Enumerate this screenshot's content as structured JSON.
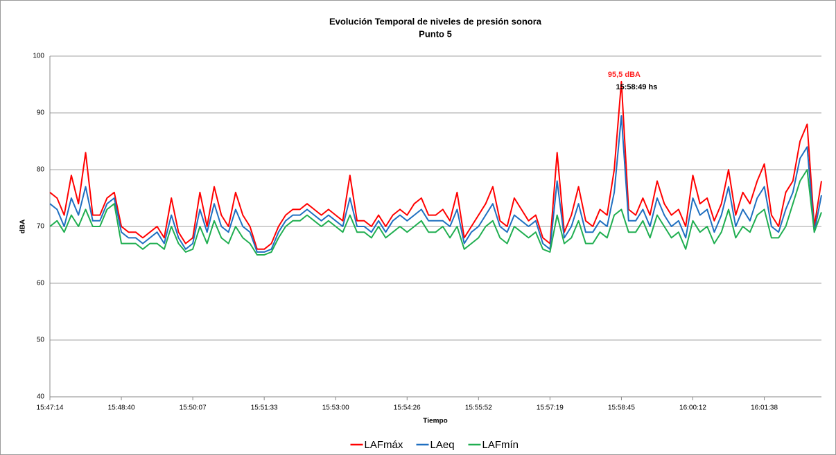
{
  "chart_data": {
    "type": "line",
    "title": "Evolución Temporal de niveles de presión sonora",
    "subtitle": "Punto 5",
    "y_label": "dBA",
    "x_label": "Tiempo",
    "categories": [
      "15:47:14",
      null,
      null,
      null,
      null,
      null,
      null,
      null,
      null,
      null,
      "15:48:40",
      null,
      null,
      null,
      null,
      null,
      null,
      null,
      null,
      null,
      "15:50:07",
      null,
      null,
      null,
      null,
      null,
      null,
      null,
      null,
      null,
      "15:51:33",
      null,
      null,
      null,
      null,
      null,
      null,
      null,
      null,
      null,
      "15:53:00",
      null,
      null,
      null,
      null,
      null,
      null,
      null,
      null,
      null,
      "15:54:26",
      null,
      null,
      null,
      null,
      null,
      null,
      null,
      null,
      null,
      "15:55:52",
      null,
      null,
      null,
      null,
      null,
      null,
      null,
      null,
      null,
      "15:57:19",
      null,
      null,
      null,
      null,
      null,
      null,
      null,
      null,
      null,
      "15:58:45",
      null,
      null,
      null,
      null,
      null,
      null,
      null,
      null,
      null,
      "16:00:12",
      null,
      null,
      null,
      null,
      null,
      null,
      null,
      null,
      null,
      "16:01:38",
      null,
      null,
      null,
      null,
      null,
      null,
      null,
      null
    ],
    "series": [
      {
        "name": "LAFmáx",
        "color": "#ff0000",
        "values": [
          76,
          75,
          72,
          79,
          74,
          83,
          72,
          72,
          75,
          76,
          70,
          69,
          69,
          68,
          69,
          70,
          68,
          75,
          69,
          67,
          68,
          76,
          70,
          77,
          72,
          70,
          76,
          72,
          70,
          66,
          66,
          67,
          70,
          72,
          73,
          73,
          74,
          73,
          72,
          73,
          72,
          71,
          79,
          71,
          71,
          70,
          72,
          70,
          72,
          73,
          72,
          74,
          75,
          72,
          72,
          73,
          71,
          76,
          68,
          70,
          72,
          74,
          77,
          71,
          70,
          75,
          73,
          71,
          72,
          68,
          67,
          83,
          69,
          72,
          77,
          71,
          70,
          73,
          72,
          80,
          95.5,
          73,
          72,
          75,
          72,
          78,
          74,
          72,
          73,
          70,
          79,
          74,
          75,
          71,
          74,
          80,
          72,
          76,
          74,
          78,
          81,
          72,
          70,
          76,
          78,
          85,
          88,
          70,
          78
        ]
      },
      {
        "name": "LAeq",
        "color": "#1f6fc0",
        "values": [
          74,
          73,
          70,
          75,
          72,
          77,
          71,
          71,
          74,
          75,
          69,
          68,
          68,
          67,
          68,
          69,
          67,
          72,
          68,
          66,
          67,
          73,
          69,
          74,
          70,
          69,
          73,
          70,
          69,
          65.5,
          65.5,
          66,
          69,
          71,
          72,
          72,
          73,
          72,
          71,
          72,
          71,
          70,
          75,
          70,
          70,
          69,
          71,
          69,
          71,
          72,
          71,
          72,
          73,
          71,
          71,
          71,
          70,
          73,
          67,
          69,
          70,
          72,
          74,
          70,
          69,
          72,
          71,
          70,
          71,
          67,
          66,
          78,
          68,
          70,
          74,
          69,
          69,
          71,
          70,
          76,
          89.5,
          71,
          71,
          73,
          70,
          75,
          72,
          70,
          71,
          68,
          75,
          72,
          73,
          69,
          72,
          77,
          70,
          73,
          71,
          75,
          77,
          70,
          69,
          73,
          76,
          82,
          84,
          69,
          75.5
        ]
      },
      {
        "name": "LAFmín",
        "color": "#1fae50",
        "values": [
          70,
          71,
          69,
          72,
          70,
          73,
          70,
          70,
          73,
          74,
          67,
          67,
          67,
          66,
          67,
          67,
          66,
          70,
          67,
          65.5,
          66,
          70,
          67,
          71,
          68,
          67,
          70,
          68,
          67,
          65,
          65,
          65.5,
          68,
          70,
          71,
          71,
          72,
          71,
          70,
          71,
          70,
          69,
          72,
          69,
          69,
          68,
          70,
          68,
          69,
          70,
          69,
          70,
          71,
          69,
          69,
          70,
          68,
          70,
          66,
          67,
          68,
          70,
          71,
          68,
          67,
          70,
          69,
          68,
          69,
          66,
          65.5,
          72,
          67,
          68,
          71,
          67,
          67,
          69,
          68,
          72,
          73,
          69,
          69,
          71,
          68,
          72,
          70,
          68,
          69,
          66,
          71,
          69,
          70,
          67,
          69,
          73,
          68,
          70,
          69,
          72,
          73,
          68,
          68,
          70,
          74,
          78,
          80,
          69,
          72.5
        ]
      }
    ],
    "annotations": [
      {
        "text": "95,5 dBA",
        "color": "#ff2020"
      },
      {
        "text": "15:58:49 hs",
        "color": "#000000"
      }
    ],
    "ylim": [
      40,
      100
    ],
    "yticks": [
      40,
      50,
      60,
      70,
      80,
      90,
      100
    ],
    "grid": true,
    "legend": "bottom"
  }
}
